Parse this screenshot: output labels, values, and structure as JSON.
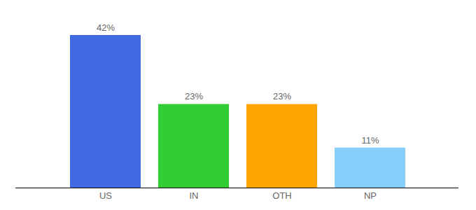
{
  "chart_data": {
    "type": "bar",
    "categories": [
      "US",
      "IN",
      "OTH",
      "NP"
    ],
    "values": [
      42,
      23,
      23,
      11
    ],
    "value_labels": [
      "42%",
      "23%",
      "23%",
      "11%"
    ],
    "colors": [
      "#4169e1",
      "#32cd32",
      "#ffa500",
      "#87cefa"
    ],
    "data_labels": true,
    "tick_labels": "x",
    "grid": false
  }
}
